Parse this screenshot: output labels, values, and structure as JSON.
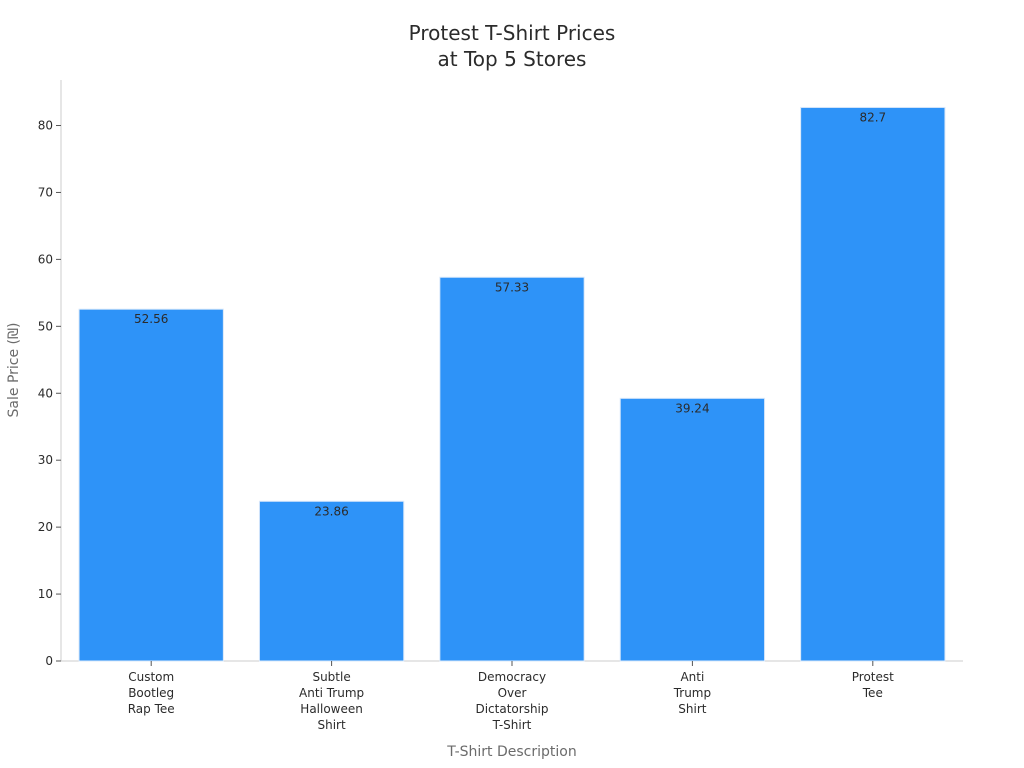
{
  "chart_data": {
    "type": "bar",
    "title": [
      "Protest T-Shirt Prices",
      "at Top 5 Stores"
    ],
    "xlabel": "T-Shirt Description",
    "ylabel": "Sale Price (₪)",
    "categories": [
      [
        "Custom",
        "Bootleg",
        "Rap Tee"
      ],
      [
        "Subtle",
        "Anti Trump",
        "Halloween",
        "Shirt"
      ],
      [
        "Democracy",
        "Over",
        "Dictatorship",
        "T-Shirt"
      ],
      [
        "Anti",
        "Trump",
        "Shirt"
      ],
      [
        "Protest",
        "Tee"
      ]
    ],
    "values": [
      52.56,
      23.86,
      57.33,
      39.24,
      82.7
    ],
    "value_labels": [
      "52.56",
      "23.86",
      "57.33",
      "39.24",
      "82.7"
    ],
    "yticks": [
      0,
      10,
      20,
      30,
      40,
      50,
      60,
      70,
      80
    ],
    "ylim": [
      0,
      86.8
    ],
    "grid": false,
    "bar_color": "#2E93F8",
    "bar_edge_color": "#D9E8FA",
    "axis_color": "#CCCCCC"
  }
}
